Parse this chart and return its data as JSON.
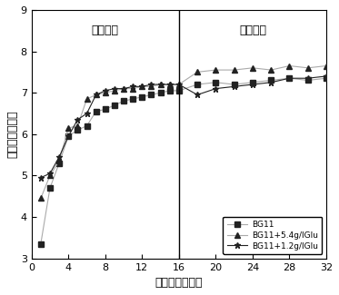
{
  "title": "",
  "xlabel": "培养时间（天）",
  "ylabel": "细胞数目对数值",
  "xlim": [
    0,
    32
  ],
  "ylim": [
    3,
    9
  ],
  "yticks": [
    3,
    4,
    5,
    6,
    7,
    8,
    9
  ],
  "xticks": [
    0,
    4,
    8,
    12,
    16,
    20,
    24,
    28,
    32
  ],
  "divider_x": 16,
  "label_nitrogen_rich": "富氪阶段",
  "label_nitrogen_def": "缺氪阶段",
  "legend_labels": [
    "BG11",
    "BG11+5.4g/lGlu",
    "BG11+1.2g/lGlu"
  ],
  "line_color": "#aaaaaa",
  "marker_color": "#222222",
  "BG11_x": [
    1,
    2,
    3,
    4,
    5,
    6,
    7,
    8,
    9,
    10,
    11,
    12,
    13,
    14,
    15,
    16,
    18,
    20,
    22,
    24,
    26,
    28,
    30,
    32
  ],
  "BG11_y": [
    3.35,
    4.7,
    5.3,
    5.95,
    6.1,
    6.2,
    6.55,
    6.6,
    6.7,
    6.8,
    6.85,
    6.9,
    6.95,
    7.0,
    7.05,
    7.05,
    7.2,
    7.25,
    7.2,
    7.25,
    7.3,
    7.35,
    7.3,
    7.35
  ],
  "BG11_54_x": [
    1,
    2,
    3,
    4,
    5,
    6,
    7,
    8,
    9,
    10,
    11,
    12,
    13,
    14,
    15,
    16,
    18,
    20,
    22,
    24,
    26,
    28,
    30,
    32
  ],
  "BG11_54_y": [
    4.45,
    5.0,
    5.35,
    6.15,
    6.2,
    6.85,
    6.95,
    7.0,
    7.05,
    7.1,
    7.1,
    7.15,
    7.15,
    7.2,
    7.2,
    7.2,
    7.5,
    7.55,
    7.55,
    7.6,
    7.55,
    7.65,
    7.6,
    7.65
  ],
  "BG11_12_x": [
    1,
    2,
    3,
    4,
    5,
    6,
    7,
    8,
    9,
    10,
    11,
    12,
    13,
    14,
    15,
    16,
    18,
    20,
    22,
    24,
    26,
    28,
    30,
    32
  ],
  "BG11_12_y": [
    4.95,
    5.05,
    5.45,
    5.95,
    6.35,
    6.5,
    6.95,
    7.05,
    7.1,
    7.1,
    7.15,
    7.15,
    7.2,
    7.2,
    7.2,
    7.2,
    6.95,
    7.1,
    7.15,
    7.2,
    7.25,
    7.35,
    7.35,
    7.4
  ]
}
